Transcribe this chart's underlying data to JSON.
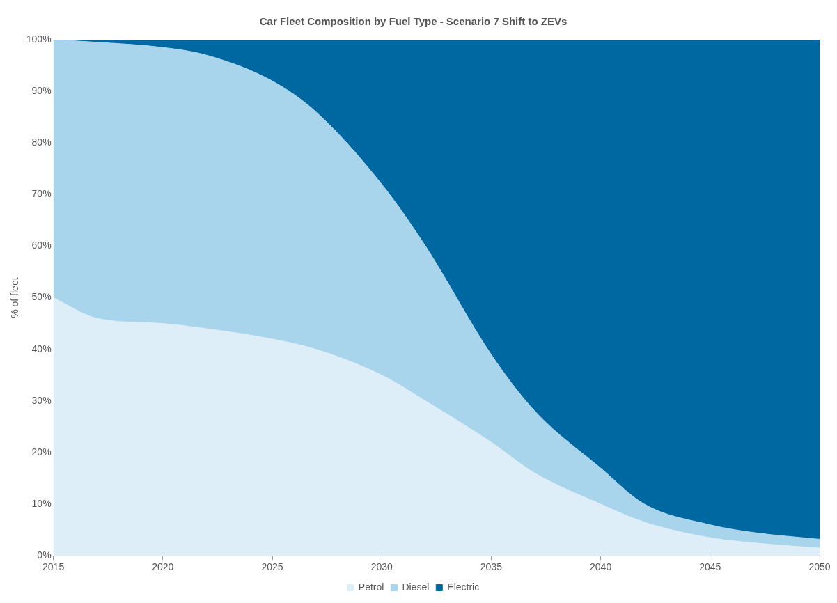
{
  "chart_data": {
    "type": "area",
    "title": "Car Fleet Composition by Fuel Type - Scenario 7 Shift to ZEVs",
    "ylabel": "% of fleet",
    "stacked": true,
    "x": [
      2015,
      2017,
      2020,
      2022,
      2025,
      2027,
      2030,
      2032,
      2035,
      2037,
      2040,
      2042,
      2045,
      2047,
      2050
    ],
    "series": [
      {
        "name": "Petrol",
        "color": "#ddeef8",
        "values": [
          50,
          46,
          45,
          44,
          42,
          40,
          35,
          30,
          22,
          16,
          10,
          6.5,
          3.5,
          2.5,
          1.5
        ]
      },
      {
        "name": "Diesel",
        "color": "#a8d4ec",
        "values": [
          50,
          53.5,
          53.5,
          53,
          50,
          46,
          37,
          30,
          17,
          12,
          7,
          3.5,
          2.5,
          2,
          1.7
        ]
      },
      {
        "name": "Electric",
        "color": "#0068a0",
        "values": [
          0,
          0.5,
          1.5,
          3,
          8,
          14,
          28,
          40,
          61,
          72,
          83,
          90,
          94,
          95.5,
          96.8
        ]
      }
    ],
    "xlim": [
      2015,
      2050
    ],
    "xticks": [
      2015,
      2020,
      2025,
      2030,
      2035,
      2040,
      2045,
      2050
    ],
    "ylim": [
      0,
      100
    ],
    "yticks": [
      {
        "value": 0,
        "label": "0%"
      },
      {
        "value": 10,
        "label": "10%"
      },
      {
        "value": 20,
        "label": "20%"
      },
      {
        "value": 30,
        "label": "30%"
      },
      {
        "value": 40,
        "label": "40%"
      },
      {
        "value": 50,
        "label": "50%"
      },
      {
        "value": 60,
        "label": "60%"
      },
      {
        "value": 70,
        "label": "70%"
      },
      {
        "value": 80,
        "label": "80%"
      },
      {
        "value": 90,
        "label": "90%"
      },
      {
        "value": 100,
        "label": "100%"
      }
    ],
    "grid": false,
    "legend": "bottom"
  }
}
